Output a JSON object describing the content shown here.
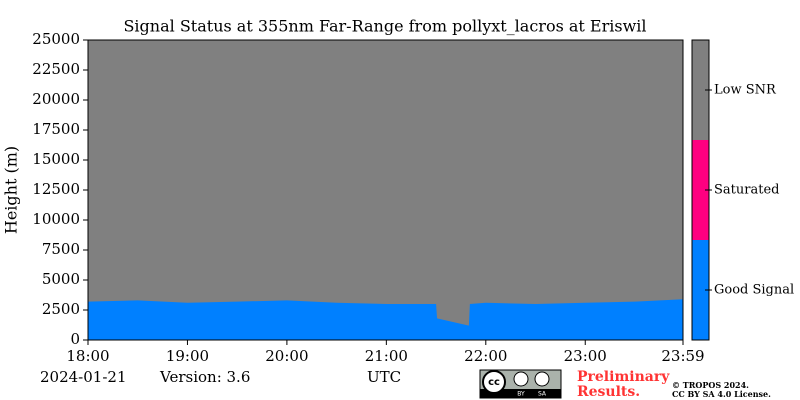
{
  "chart_data": {
    "type": "status",
    "title": "Signal Status at 355nm Far-Range from pollyxt_lacros at Eriswil",
    "ylabel": "Height (m)",
    "xlabel": "UTC",
    "x": [
      18,
      18.5,
      19,
      19.5,
      20,
      20.5,
      21,
      21.5,
      21.51,
      21.83,
      21.84,
      22,
      22.5,
      23,
      23.5,
      23.983
    ],
    "series": [
      {
        "name": "Good Signal",
        "color": "#0080ff",
        "values": [
          3200,
          3300,
          3100,
          3200,
          3300,
          3100,
          3000,
          3000,
          1800,
          1200,
          3000,
          3100,
          3000,
          3100,
          3200,
          3400
        ]
      }
    ],
    "background_color": "#808080",
    "xlim": [
      18,
      23.983
    ],
    "xticks": [
      {
        "value": 18,
        "label": "18:00"
      },
      {
        "value": 19,
        "label": "19:00"
      },
      {
        "value": 20,
        "label": "20:00"
      },
      {
        "value": 21,
        "label": "21:00"
      },
      {
        "value": 22,
        "label": "22:00"
      },
      {
        "value": 23,
        "label": "23:00"
      },
      {
        "value": 23.983,
        "label": "23:59"
      }
    ],
    "ylim": [
      0,
      25000
    ],
    "yticks": [
      0,
      2500,
      5000,
      7500,
      10000,
      12500,
      15000,
      17500,
      20000,
      22500,
      25000
    ],
    "colorbar": {
      "categories": [
        "Good Signal",
        "Saturated",
        "Low SNR"
      ],
      "colors": [
        "#0080ff",
        "#ff0080",
        "#808080"
      ]
    }
  },
  "footer": {
    "date": "2024-01-21",
    "version": "Version: 3.6",
    "badge": [
      "BY",
      "SA"
    ],
    "preliminary": [
      "Preliminary",
      "Results."
    ],
    "copyright": [
      "© TROPOS 2024.",
      "CC BY SA 4.0 License."
    ]
  }
}
